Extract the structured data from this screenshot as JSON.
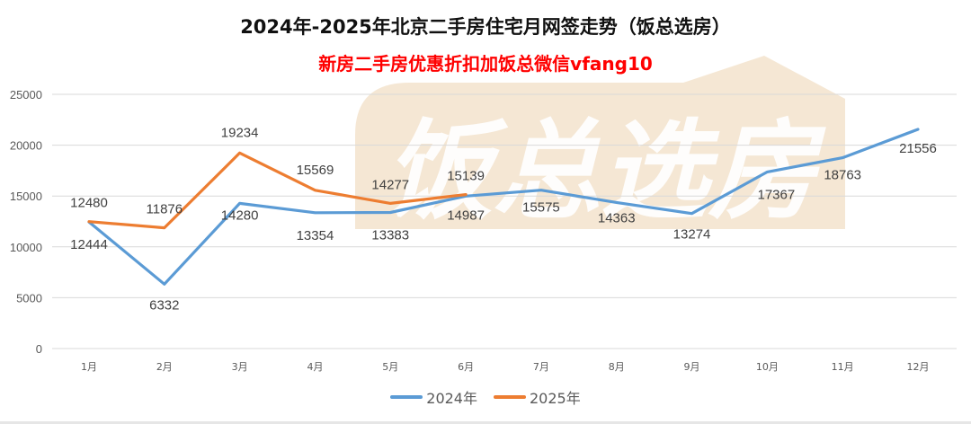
{
  "header": {
    "title": "2024年-2025年北京二手房住宅月网签走势（饭总选房）",
    "subtitle": "新房二手房优惠折扣加饭总微信vfang10"
  },
  "watermark": {
    "text": "饭总选房",
    "color": "#f3e3cc"
  },
  "colors": {
    "series_2024": "#5b9bd5",
    "series_2025": "#ed7d31",
    "grid": "#d9d9d9",
    "subtitle": "#ff0000"
  },
  "legend": [
    {
      "label": "2024年",
      "color": "#5b9bd5"
    },
    {
      "label": "2025年",
      "color": "#ed7d31"
    }
  ],
  "chart_data": {
    "type": "line",
    "title": "2024年-2025年北京二手房住宅月网签走势（饭总选房）",
    "subtitle": "新房二手房优惠折扣加饭总微信vfang10",
    "xlabel": "",
    "ylabel": "",
    "categories": [
      "1月",
      "2月",
      "3月",
      "4月",
      "5月",
      "6月",
      "7月",
      "8月",
      "9月",
      "10月",
      "11月",
      "12月"
    ],
    "yticks": [
      0,
      5000,
      10000,
      15000,
      20000,
      25000
    ],
    "ylim": [
      0,
      25000
    ],
    "grid": true,
    "legend_position": "bottom",
    "series": [
      {
        "name": "2024年",
        "color": "#5b9bd5",
        "values": [
          12444,
          6332,
          14280,
          13354,
          13383,
          14987,
          15575,
          14363,
          13274,
          17367,
          18763,
          21556
        ]
      },
      {
        "name": "2025年",
        "color": "#ed7d31",
        "values": [
          12480,
          11876,
          19234,
          15569,
          14277,
          15139,
          null,
          null,
          null,
          null,
          null,
          null
        ]
      }
    ]
  }
}
